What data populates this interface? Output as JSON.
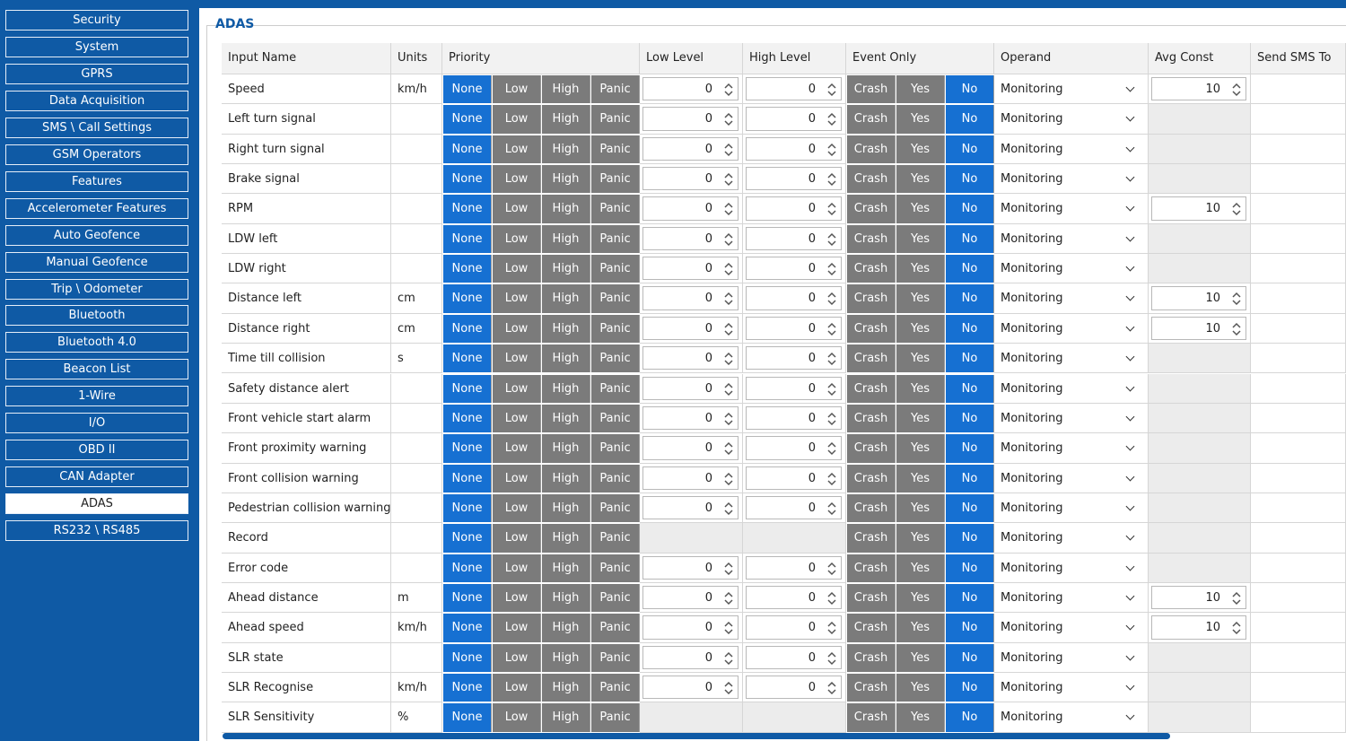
{
  "sidebar": {
    "items": [
      "Security",
      "System",
      "GPRS",
      "Data Acquisition",
      "SMS \\ Call Settings",
      "GSM Operators",
      "Features",
      "Accelerometer Features",
      "Auto Geofence",
      "Manual Geofence",
      "Trip \\ Odometer",
      "Bluetooth",
      "Bluetooth 4.0",
      "Beacon List",
      "1-Wire",
      "I/O",
      "OBD II",
      "CAN Adapter",
      "ADAS",
      "RS232 \\ RS485"
    ],
    "active_item": 18
  },
  "section_title": "ADAS",
  "table": {
    "headers": [
      "Input Name",
      "Units",
      "Priority",
      "Low Level",
      "High Level",
      "Event Only",
      "Operand",
      "Avg Const",
      "Send SMS To"
    ],
    "priority_options": [
      "None",
      "Low",
      "High",
      "Panic"
    ],
    "priority_selected": 0,
    "event_options": [
      "Crash",
      "Yes",
      "No"
    ],
    "event_selected": 2,
    "rows": [
      {
        "name": "Speed",
        "units": "km/h",
        "low": 0,
        "high": 0,
        "operand": "Monitoring",
        "avg": 10
      },
      {
        "name": "Left turn signal",
        "units": null,
        "low": 0,
        "high": 0,
        "operand": "Monitoring",
        "avg": null
      },
      {
        "name": "Right turn signal",
        "units": null,
        "low": 0,
        "high": 0,
        "operand": "Monitoring",
        "avg": null
      },
      {
        "name": "Brake signal",
        "units": null,
        "low": 0,
        "high": 0,
        "operand": "Monitoring",
        "avg": null
      },
      {
        "name": "RPM",
        "units": null,
        "low": 0,
        "high": 0,
        "operand": "Monitoring",
        "avg": 10
      },
      {
        "name": "LDW left",
        "units": null,
        "low": 0,
        "high": 0,
        "operand": "Monitoring",
        "avg": null
      },
      {
        "name": "LDW right",
        "units": null,
        "low": 0,
        "high": 0,
        "operand": "Monitoring",
        "avg": null
      },
      {
        "name": "Distance left",
        "units": "cm",
        "low": 0,
        "high": 0,
        "operand": "Monitoring",
        "avg": 10
      },
      {
        "name": "Distance right",
        "units": "cm",
        "low": 0,
        "high": 0,
        "operand": "Monitoring",
        "avg": 10
      },
      {
        "name": "Time till collision",
        "units": "s",
        "low": 0,
        "high": 0,
        "operand": "Monitoring",
        "avg": null
      },
      {
        "name": "Safety distance alert",
        "units": null,
        "low": 0,
        "high": 0,
        "operand": "Monitoring",
        "avg": null
      },
      {
        "name": "Front vehicle start alarm",
        "units": null,
        "low": 0,
        "high": 0,
        "operand": "Monitoring",
        "avg": null
      },
      {
        "name": "Front proximity warning",
        "units": null,
        "low": 0,
        "high": 0,
        "operand": "Monitoring",
        "avg": null
      },
      {
        "name": "Front collision warning",
        "units": null,
        "low": 0,
        "high": 0,
        "operand": "Monitoring",
        "avg": null
      },
      {
        "name": "Pedestrian collision warning",
        "units": null,
        "low": 0,
        "high": 0,
        "operand": "Monitoring",
        "avg": null
      },
      {
        "name": "Record",
        "units": null,
        "low": null,
        "high": null,
        "operand": "Monitoring",
        "avg": null
      },
      {
        "name": "Error code",
        "units": null,
        "low": 0,
        "high": 0,
        "operand": "Monitoring",
        "avg": null
      },
      {
        "name": "Ahead distance",
        "units": "m",
        "low": 0,
        "high": 0,
        "operand": "Monitoring",
        "avg": 10
      },
      {
        "name": "Ahead speed",
        "units": "km/h",
        "low": 0,
        "high": 0,
        "operand": "Monitoring",
        "avg": 10
      },
      {
        "name": "SLR state",
        "units": null,
        "low": 0,
        "high": 0,
        "operand": "Monitoring",
        "avg": null
      },
      {
        "name": "SLR Recognise",
        "units": "km/h",
        "low": 0,
        "high": 0,
        "operand": "Monitoring",
        "avg": null
      },
      {
        "name": "SLR Sensitivity",
        "units": "%",
        "low": null,
        "high": null,
        "operand": "Monitoring",
        "avg": null
      }
    ]
  }
}
